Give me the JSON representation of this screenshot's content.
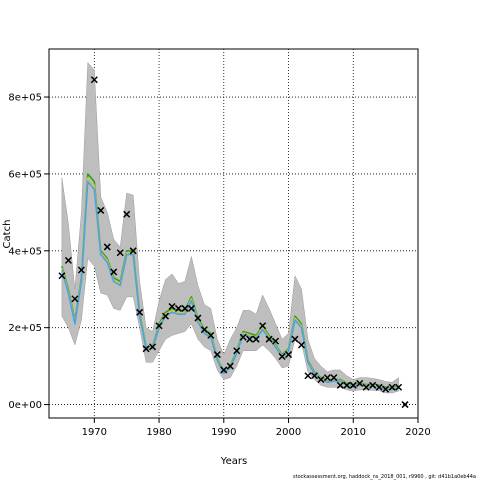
{
  "chart_data": {
    "type": "line",
    "xlabel": "Years",
    "ylabel": "Catch",
    "xlim": [
      1963.0,
      2020.0
    ],
    "ylim": [
      -35000,
      925000
    ],
    "x_ticks": [
      1970,
      1980,
      1990,
      2000,
      2010,
      2020
    ],
    "y_ticks": [
      0,
      200000,
      400000,
      600000,
      800000
    ],
    "y_tick_labels": [
      "0e+00",
      "2e+05",
      "4e+05",
      "6e+05",
      "8e+05"
    ],
    "grid": true,
    "colors": {
      "band": "#bebebe",
      "line_green": "#2ca02c",
      "line_yellow": "#d4c04a",
      "line_blue": "#4aa3df",
      "marker": "#000000"
    },
    "band": {
      "x": [
        1965,
        1966,
        1967,
        1968,
        1969,
        1970,
        1971,
        1972,
        1973,
        1974,
        1975,
        1976,
        1977,
        1978,
        1979,
        1980,
        1981,
        1982,
        1983,
        1984,
        1985,
        1986,
        1987,
        1988,
        1989,
        1990,
        1991,
        1992,
        1993,
        1994,
        1995,
        1996,
        1997,
        1998,
        1999,
        2000,
        2001,
        2002,
        2003,
        2004,
        2005,
        2006,
        2007,
        2008,
        2009,
        2010,
        2011,
        2012,
        2013,
        2014,
        2015,
        2016,
        2017
      ],
      "upper": [
        590000,
        470000,
        300000,
        500000,
        890000,
        870000,
        540000,
        500000,
        430000,
        410000,
        550000,
        545000,
        320000,
        200000,
        190000,
        270000,
        325000,
        340000,
        315000,
        320000,
        385000,
        310000,
        260000,
        250000,
        170000,
        130000,
        170000,
        200000,
        245000,
        245000,
        235000,
        285000,
        250000,
        210000,
        170000,
        185000,
        335000,
        300000,
        170000,
        120000,
        100000,
        85000,
        90000,
        90000,
        75000,
        65000,
        70000,
        70000,
        68000,
        65000,
        60000,
        58000,
        70000
      ],
      "lower": [
        230000,
        200000,
        155000,
        220000,
        380000,
        360000,
        290000,
        285000,
        250000,
        245000,
        280000,
        280000,
        200000,
        110000,
        110000,
        140000,
        170000,
        180000,
        185000,
        190000,
        210000,
        170000,
        150000,
        140000,
        90000,
        65000,
        70000,
        100000,
        140000,
        140000,
        140000,
        155000,
        140000,
        120000,
        95000,
        100000,
        170000,
        160000,
        85000,
        65000,
        50000,
        45000,
        45000,
        45000,
        38000,
        35000,
        38000,
        38000,
        37000,
        36000,
        30000,
        30000,
        35000
      ]
    },
    "series": [
      {
        "x": [
          1965,
          1966,
          1967,
          1968,
          1969,
          1970,
          1971,
          1972,
          1973,
          1974,
          1975,
          1976,
          1977,
          1978,
          1979,
          1980,
          1981,
          1982,
          1983,
          1984,
          1985,
          1986,
          1987,
          1988,
          1989,
          1990,
          1991,
          1992,
          1993,
          1994,
          1995,
          1996,
          1997,
          1998,
          1999,
          2000,
          2001,
          2002,
          2003,
          2004,
          2005,
          2006,
          2007,
          2008,
          2009,
          2010,
          2011,
          2012,
          2013,
          2014,
          2015,
          2016,
          2017
        ],
        "values": [
          360000,
          300000,
          220000,
          330000,
          600000,
          580000,
          400000,
          380000,
          330000,
          320000,
          400000,
          400000,
          240000,
          150000,
          150000,
          210000,
          240000,
          250000,
          245000,
          245000,
          280000,
          225000,
          195000,
          185000,
          120000,
          85000,
          100000,
          140000,
          190000,
          185000,
          180000,
          205000,
          180000,
          155000,
          130000,
          145000,
          230000,
          210000,
          115000,
          85000,
          70000,
          62000,
          65000,
          65000,
          55000,
          50000,
          55000,
          52000,
          52000,
          50000,
          45000,
          43000,
          48000
        ],
        "color": "#2ca02c"
      },
      {
        "x": [
          1965,
          1966,
          1967,
          1968,
          1969,
          1970,
          1971,
          1972,
          1973,
          1974,
          1975,
          1976,
          1977,
          1978,
          1979,
          1980,
          1981,
          1982,
          1983,
          1984,
          1985,
          1986,
          1987,
          1988,
          1989,
          1990,
          1991,
          1992,
          1993,
          1994,
          1995,
          1996,
          1997,
          1998,
          1999,
          2000,
          2001,
          2002,
          2003,
          2004,
          2005,
          2006,
          2007,
          2008,
          2009,
          2010,
          2011,
          2012,
          2013,
          2014,
          2015,
          2016,
          2017
        ],
        "values": [
          355000,
          295000,
          215000,
          325000,
          590000,
          570000,
          395000,
          375000,
          325000,
          315000,
          395000,
          395000,
          235000,
          148000,
          148000,
          205000,
          235000,
          245000,
          240000,
          240000,
          275000,
          220000,
          190000,
          180000,
          118000,
          83000,
          98000,
          137000,
          186000,
          181000,
          176000,
          200000,
          176000,
          152000,
          127000,
          142000,
          225000,
          205000,
          112000,
          83000,
          68000,
          60000,
          63000,
          63000,
          53000,
          48000,
          53000,
          50000,
          50000,
          48000,
          43000,
          41000,
          46000
        ],
        "color": "#d4c04a"
      },
      {
        "x": [
          1965,
          1966,
          1967,
          1968,
          1969,
          1970,
          1971,
          1972,
          1973,
          1974,
          1975,
          1976,
          1977,
          1978,
          1979,
          1980,
          1981,
          1982,
          1983,
          1984,
          1985,
          1986,
          1987,
          1988,
          1989,
          1990,
          1991,
          1992,
          1993,
          1994,
          1995,
          1996,
          1997,
          1998,
          1999,
          2000,
          2001,
          2002,
          2003,
          2004,
          2005,
          2006,
          2007,
          2008,
          2009,
          2010,
          2011,
          2012,
          2013,
          2014,
          2015,
          2016,
          2017
        ],
        "values": [
          350000,
          290000,
          210000,
          320000,
          580000,
          560000,
          390000,
          370000,
          320000,
          310000,
          390000,
          390000,
          230000,
          146000,
          146000,
          200000,
          230000,
          240000,
          235000,
          235000,
          270000,
          215000,
          185000,
          175000,
          116000,
          81000,
          96000,
          134000,
          182000,
          177000,
          172000,
          195000,
          172000,
          149000,
          124000,
          139000,
          220000,
          200000,
          109000,
          81000,
          66000,
          58000,
          61000,
          61000,
          51000,
          46000,
          51000,
          48000,
          48000,
          46000,
          41000,
          39000,
          44000
        ],
        "color": "#4aa3df"
      }
    ],
    "observed": {
      "x": [
        1965,
        1966,
        1967,
        1968,
        1970,
        1971,
        1972,
        1973,
        1974,
        1975,
        1976,
        1977,
        1978,
        1979,
        1980,
        1981,
        1982,
        1983,
        1984,
        1985,
        1986,
        1987,
        1988,
        1989,
        1990,
        1991,
        1992,
        1993,
        1994,
        1995,
        1996,
        1997,
        1998,
        1999,
        2000,
        2001,
        2002,
        2003,
        2004,
        2005,
        2006,
        2007,
        2008,
        2009,
        2010,
        2011,
        2012,
        2013,
        2014,
        2015,
        2016,
        2017,
        2018
      ],
      "y": [
        335000,
        375000,
        275000,
        350000,
        845000,
        505000,
        410000,
        345000,
        395000,
        495000,
        400000,
        240000,
        145000,
        150000,
        205000,
        230000,
        255000,
        250000,
        250000,
        250000,
        225000,
        195000,
        180000,
        130000,
        90000,
        100000,
        140000,
        175000,
        170000,
        170000,
        205000,
        170000,
        165000,
        125000,
        130000,
        170000,
        155000,
        75000,
        75000,
        65000,
        70000,
        70000,
        50000,
        50000,
        50000,
        55000,
        45000,
        50000,
        45000,
        40000,
        45000,
        45000,
        0
      ]
    }
  },
  "footer": "stockassessment.org, haddock_ns_2018_001, r9960 , git: d41b1a0eb44a"
}
